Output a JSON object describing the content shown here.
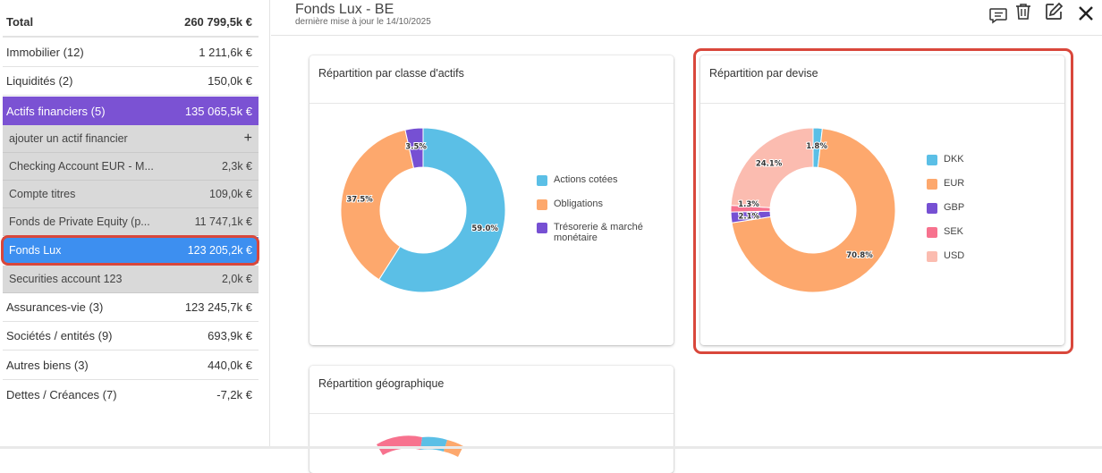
{
  "sidebar": {
    "total": {
      "label": "Total",
      "value": "260 799,5k €"
    },
    "items": [
      {
        "label": "Immobilier (12)",
        "value": "1 211,6k €"
      },
      {
        "label": "Liquidités (2)",
        "value": "150,0k €"
      },
      {
        "label": "Actifs financiers (5)",
        "value": "135 065,5k €"
      }
    ],
    "add_label": "ajouter un actif financier",
    "add_icon": "plus-icon",
    "subitems": [
      {
        "label": "Checking Account EUR - M...",
        "value": "2,3k €"
      },
      {
        "label": "Compte titres",
        "value": "109,0k €"
      },
      {
        "label": "Fonds de Private Equity (p...",
        "value": "11 747,1k €"
      },
      {
        "label": "Fonds Lux",
        "value": "123 205,2k €"
      },
      {
        "label": "Securities account 123",
        "value": "2,0k €"
      }
    ],
    "items_after": [
      {
        "label": "Assurances-vie (3)",
        "value": "123 245,7k €"
      },
      {
        "label": "Sociétés / entités (9)",
        "value": "693,9k €"
      },
      {
        "label": "Autres biens (3)",
        "value": "440,0k €"
      },
      {
        "label": "Dettes / Créances (7)",
        "value": "-7,2k €"
      }
    ]
  },
  "header": {
    "title": "Fonds Lux - BE",
    "subtitle": "dernière mise à jour le 14/10/2025",
    "icons": [
      "comment-icon",
      "trash-icon",
      "edit-icon",
      "close-icon"
    ]
  },
  "colors": {
    "purple_active": "#7b52d3",
    "blue_selected": "#3d8ff0",
    "highlight": "#d9473b",
    "actions": "#5bbfe6",
    "obligations": "#fda86d",
    "tresorerie": "#7650d3",
    "sek": "#f7728e",
    "usd": "#fbbcb0"
  },
  "chart_data": [
    {
      "type": "pie",
      "title": "Répartition par classe d'actifs",
      "categories": [
        "Actions cotées",
        "Obligations",
        "Trésorerie & marché monétaire"
      ],
      "values": [
        59.0,
        37.5,
        3.5
      ],
      "labels": [
        "59.0%",
        "37.5%",
        "3.5%"
      ],
      "colors": [
        "#5bbfe6",
        "#fda86d",
        "#7650d3"
      ],
      "donut": true,
      "legend": "right"
    },
    {
      "type": "pie",
      "title": "Répartition par devise",
      "categories": [
        "DKK",
        "EUR",
        "GBP",
        "SEK",
        "USD"
      ],
      "values": [
        1.8,
        70.8,
        2.1,
        1.3,
        24.1
      ],
      "labels": [
        "1.8%",
        "70.8%",
        "2.1%",
        "1.3%",
        "24.1%"
      ],
      "colors": [
        "#5bbfe6",
        "#fda86d",
        "#7650d3",
        "#f7728e",
        "#fbbcb0"
      ],
      "donut": true,
      "legend": "right"
    },
    {
      "type": "pie",
      "title": "Répartition géographique",
      "categories": [],
      "values": [],
      "donut": true
    }
  ]
}
